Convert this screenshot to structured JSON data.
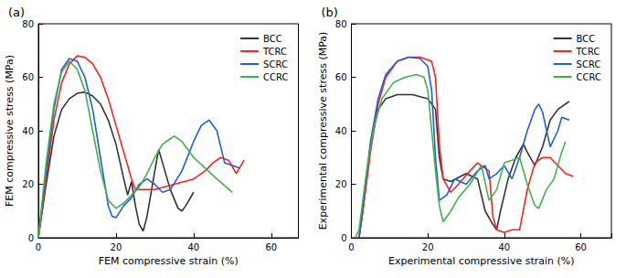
{
  "chart_data": [
    {
      "type": "line",
      "title": "(a)",
      "x_label": "FEM compressive strain (%)",
      "y_label": "FEM compressive stress (MPa)",
      "xlim": [
        0,
        67
      ],
      "xticks": [
        0,
        20,
        40,
        60
      ],
      "ylim": [
        0,
        80
      ],
      "yticks": [
        0,
        20,
        40,
        60,
        80
      ],
      "grid": false,
      "legend": "top-right",
      "series": [
        {
          "name": "BCC",
          "color": "#333333",
          "x": [
            0,
            2,
            4,
            6,
            8,
            10,
            12,
            14,
            16,
            18,
            20,
            22,
            23,
            24,
            25,
            26,
            27,
            28,
            30,
            31,
            32,
            34,
            36,
            37,
            38,
            40
          ],
          "values": [
            0,
            20,
            38,
            48,
            52,
            54,
            54.5,
            53,
            50,
            44,
            35,
            22,
            16,
            21,
            12,
            5,
            2.5,
            8,
            25,
            33,
            28,
            18,
            11,
            10,
            12,
            17
          ]
        },
        {
          "name": "TCRC",
          "color": "#ff2020",
          "x": [
            0,
            2,
            4,
            6,
            8,
            10,
            12,
            14,
            16,
            18,
            20,
            22,
            24,
            25,
            27,
            30,
            35,
            40,
            43,
            45,
            47,
            49,
            51,
            53
          ],
          "values": [
            0,
            22,
            44,
            58,
            65,
            68,
            67.5,
            65,
            60,
            52,
            42,
            32,
            22,
            18,
            18,
            18,
            20,
            22,
            25,
            28,
            30,
            29,
            24,
            29
          ]
        },
        {
          "name": "SCRC",
          "color": "#1f5fd6",
          "x": [
            0,
            2,
            4,
            6,
            8,
            10,
            12,
            14,
            16,
            18,
            19,
            20,
            22,
            24,
            26,
            28,
            30,
            32,
            34,
            37,
            40,
            42,
            44,
            46,
            48,
            50,
            52
          ],
          "values": [
            0,
            25,
            48,
            63,
            67,
            66,
            60,
            48,
            30,
            12,
            8,
            7.5,
            12,
            15,
            20,
            22,
            20,
            17,
            18,
            25,
            36,
            42,
            44,
            40,
            28,
            27,
            26
          ]
        },
        {
          "name": "CCRC",
          "color": "#3cb44b",
          "x": [
            0,
            2,
            4,
            6,
            8,
            10,
            12,
            14,
            16,
            18,
            20,
            22,
            24,
            26,
            28,
            30,
            32,
            34,
            35,
            37,
            40,
            43,
            46,
            50
          ],
          "values": [
            0,
            28,
            50,
            62,
            66,
            63,
            55,
            40,
            25,
            14,
            11,
            13,
            16,
            19,
            24,
            30,
            35,
            37,
            38,
            36,
            30,
            26,
            22,
            17
          ]
        }
      ]
    },
    {
      "type": "line",
      "title": "(b)",
      "x_label": "Experimental compressive strain (%)",
      "y_label": "Experimental compressive stress (MPa)",
      "xlim": [
        0,
        68
      ],
      "xticks": [
        0,
        20,
        40,
        60
      ],
      "ylim": [
        0,
        80
      ],
      "yticks": [
        0,
        20,
        40,
        60,
        80
      ],
      "grid": false,
      "legend": "top-right",
      "series": [
        {
          "name": "BCC",
          "color": "#333333",
          "x": [
            2,
            3,
            5,
            7,
            9,
            12,
            16,
            20,
            22,
            23,
            24,
            26,
            30,
            33,
            35,
            37,
            38,
            39,
            41,
            43,
            45,
            46,
            48,
            50,
            52,
            54,
            56,
            57
          ],
          "values": [
            0,
            10,
            35,
            48,
            52,
            53.5,
            53.5,
            52,
            48,
            30,
            22,
            21,
            24,
            22,
            10,
            5,
            3,
            10,
            22,
            30,
            35,
            32,
            27,
            34,
            44,
            48,
            50,
            51
          ]
        },
        {
          "name": "TCRC",
          "color": "#ff2020",
          "x": [
            2,
            3,
            5,
            7,
            9,
            12,
            15,
            18,
            21,
            22,
            23,
            24,
            26,
            28,
            31,
            33,
            36,
            37,
            38,
            40,
            42,
            44,
            46,
            48,
            50,
            52,
            54,
            56,
            58
          ],
          "values": [
            0,
            10,
            32,
            50,
            60,
            66,
            67.5,
            67.5,
            66,
            60,
            35,
            22,
            17,
            20,
            25,
            28,
            25,
            8,
            3,
            2,
            3,
            3,
            18,
            28,
            30,
            30,
            27,
            24,
            23
          ]
        },
        {
          "name": "SCRC",
          "color": "#1f5fd6",
          "x": [
            2,
            3,
            5,
            7,
            9,
            12,
            15,
            18,
            20,
            21,
            22,
            23,
            25,
            27,
            30,
            33,
            35,
            36,
            38,
            40,
            42,
            44,
            46,
            48,
            49,
            50,
            52,
            54,
            55,
            57
          ],
          "values": [
            0,
            12,
            36,
            52,
            61,
            66,
            67.5,
            67,
            64,
            55,
            30,
            14,
            16,
            22,
            20,
            25,
            27,
            22,
            24,
            27,
            22,
            30,
            40,
            48,
            50,
            47,
            34,
            40,
            45,
            44
          ]
        },
        {
          "name": "CCRC",
          "color": "#3cb44b",
          "x": [
            1,
            2,
            4,
            6,
            8,
            11,
            14,
            17,
            19,
            20,
            21,
            22,
            23,
            24,
            26,
            28,
            31,
            34,
            36,
            38,
            40,
            42,
            44,
            46,
            48,
            49,
            51,
            53,
            55,
            56
          ],
          "values": [
            0,
            3,
            25,
            42,
            52,
            58,
            60,
            61,
            60,
            55,
            40,
            25,
            12,
            6,
            10,
            15,
            20,
            27,
            14,
            18,
            28,
            29,
            30,
            20,
            12,
            11,
            18,
            22,
            32,
            36
          ]
        }
      ]
    }
  ]
}
